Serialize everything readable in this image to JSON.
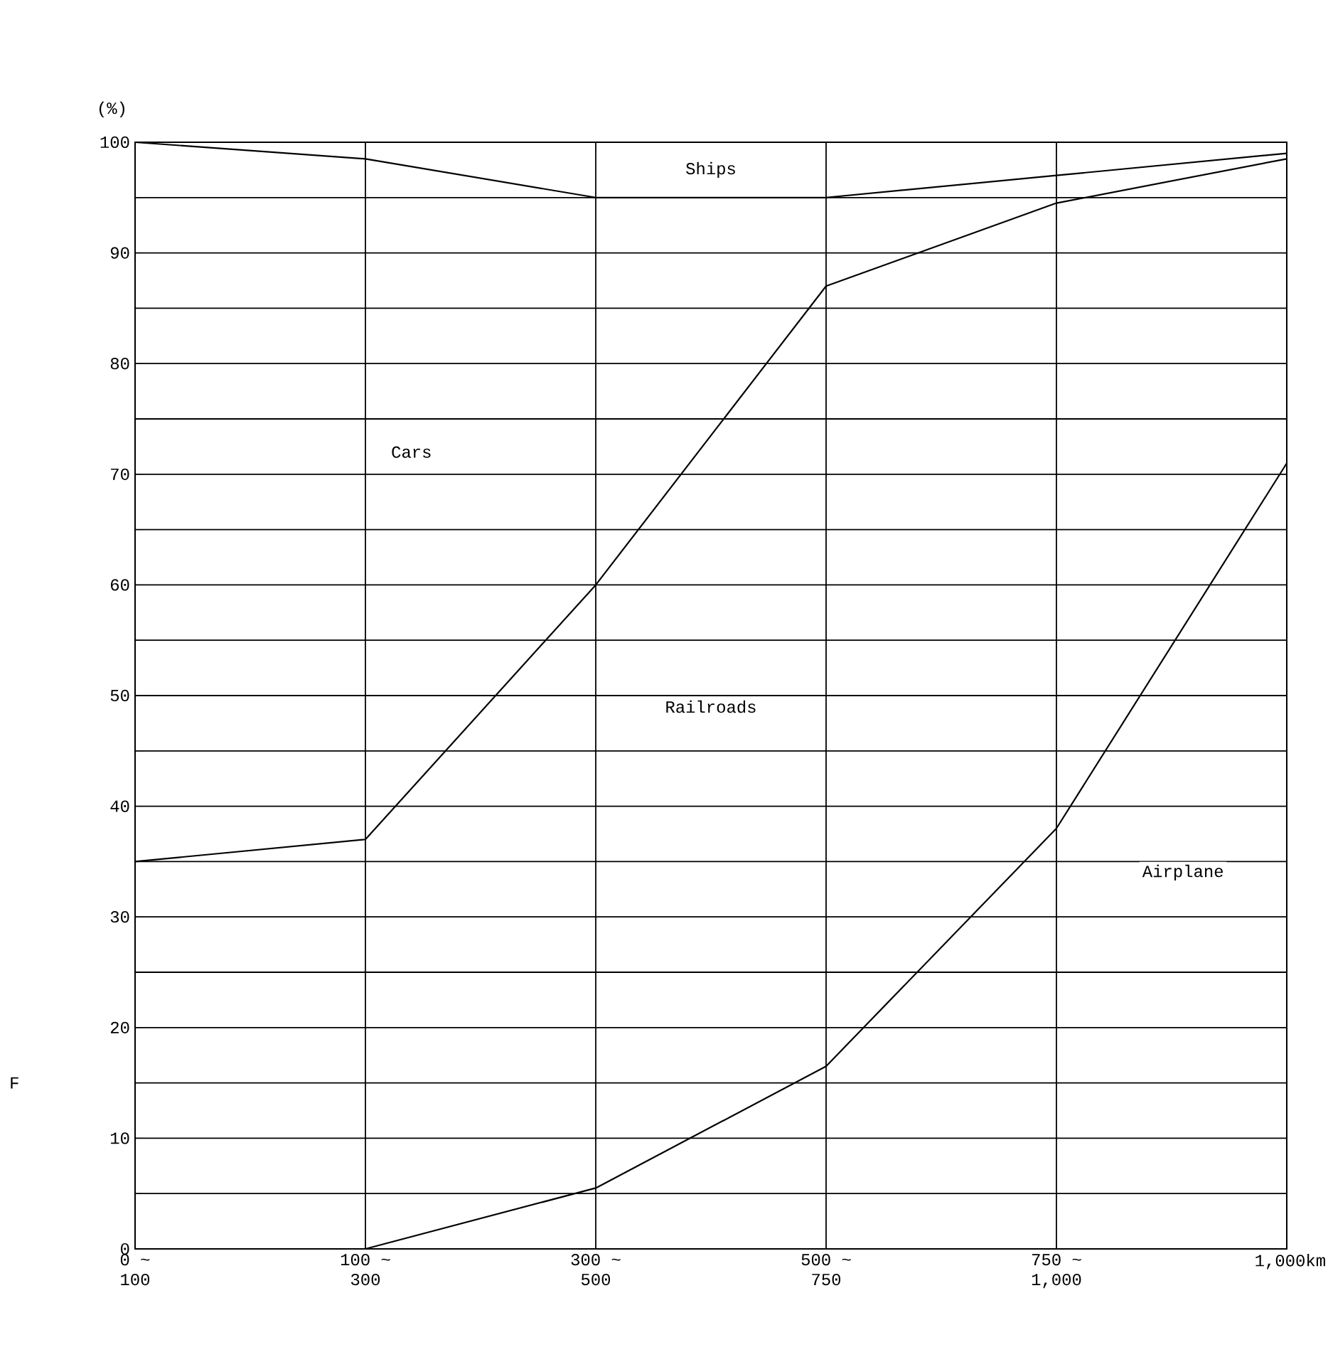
{
  "chart_data": {
    "type": "line",
    "ylabel": "(%)",
    "categories": [
      "0 ~ 100",
      "100 ~ 300",
      "300 ~ 500",
      "500 ~ 750",
      "750 ~ 1,000",
      "1,000km"
    ],
    "series": [
      {
        "color": "#000000",
        "values": [
          0,
          0,
          5.5,
          16.5,
          38,
          71
        ]
      },
      {
        "color": "#000000",
        "values": [
          35,
          37,
          60,
          87,
          94.5,
          98.5
        ]
      },
      {
        "color": "#000000",
        "values": [
          100,
          98.5,
          95,
          95,
          97,
          99
        ]
      }
    ],
    "ylim": [
      0,
      100
    ],
    "yticks": [
      0,
      {
        "value": 5,
        "label": null
      },
      10,
      {
        "value": 15,
        "label": null
      },
      20,
      {
        "value": 25,
        "label": null
      },
      30,
      {
        "value": 35,
        "label": null
      },
      40,
      {
        "value": 45,
        "label": null
      },
      50,
      {
        "value": 55,
        "label": null
      },
      60,
      {
        "value": 65,
        "label": null
      },
      70,
      {
        "value": 75,
        "label": null
      },
      80,
      {
        "value": 85,
        "label": null
      },
      90,
      {
        "value": 95,
        "label": null
      },
      100
    ],
    "grid": true,
    "annotations": [
      "Ships",
      "Cars",
      "Railroads",
      "Airplane",
      "F"
    ]
  }
}
